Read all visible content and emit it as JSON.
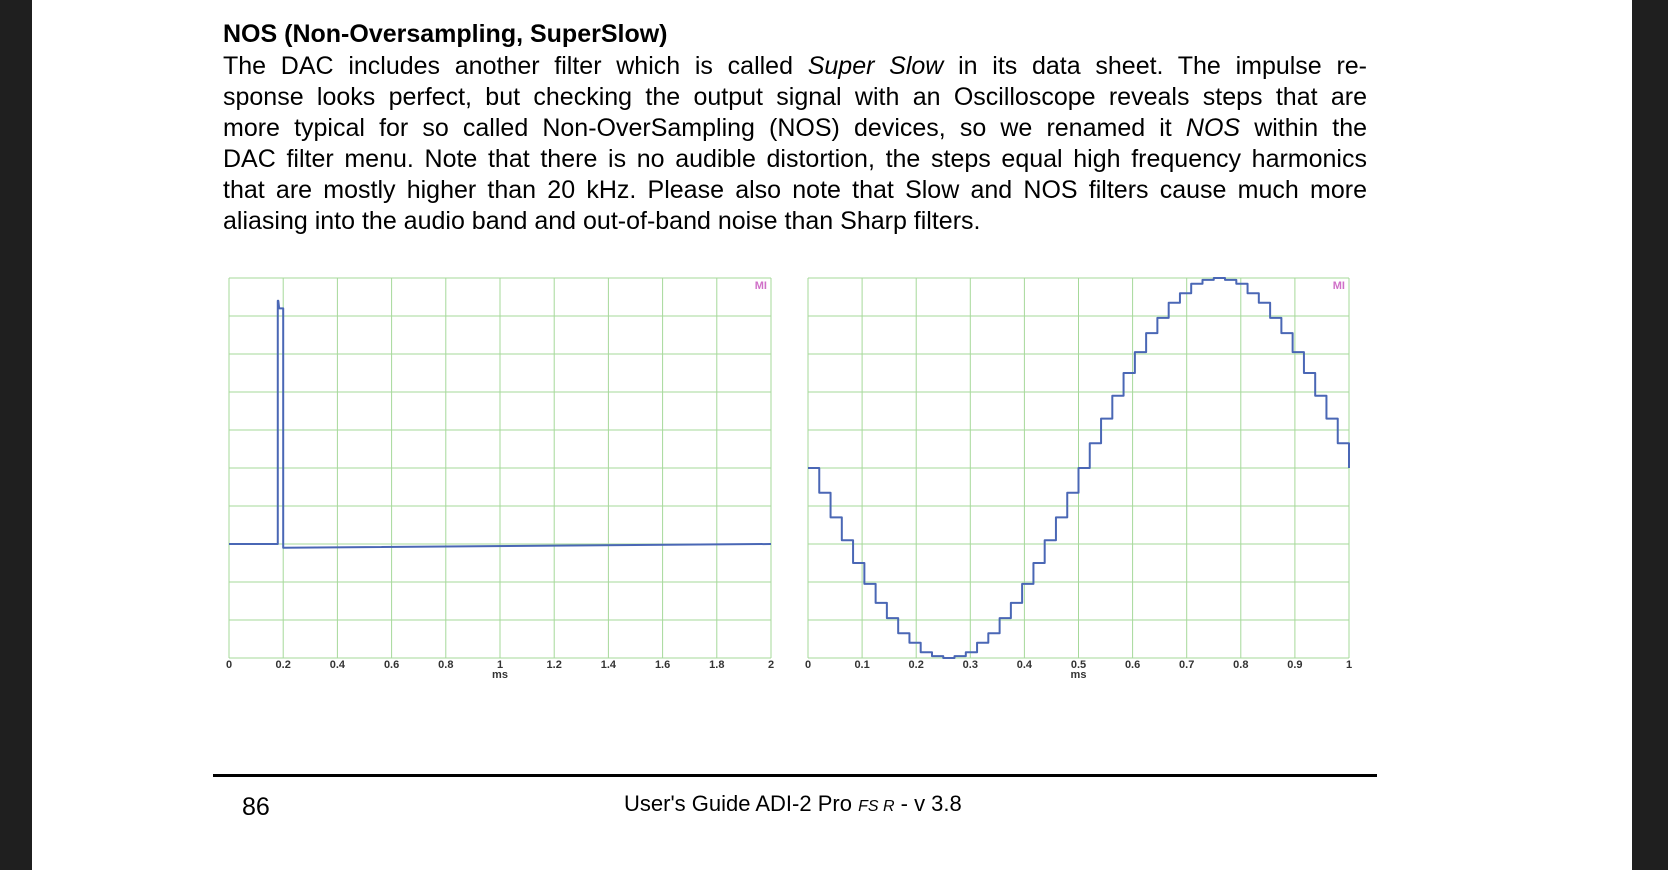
{
  "heading": "NOS (Non-Oversampling, SuperSlow)",
  "paragraph": [
    [
      {
        "t": "The DAC includes another filter which is called "
      },
      {
        "t": "Super Slow",
        "i": true
      },
      {
        "t": " in its data sheet. The impulse re-"
      }
    ],
    [
      {
        "t": "sponse looks perfect, but checking the output signal with an Oscilloscope reveals steps that are"
      }
    ],
    [
      {
        "t": "more typical for so called Non-OverSampling (NOS) devices, so we renamed it "
      },
      {
        "t": "NOS",
        "i": true
      },
      {
        "t": " within the"
      }
    ],
    [
      {
        "t": "DAC filter menu. Note that there is no audible distortion, the steps equal high frequency harmonics"
      }
    ],
    [
      {
        "t": "that are mostly higher than 20 kHz. Please also note that Slow and NOS filters cause much more"
      }
    ],
    [
      {
        "t": "aliasing into the audio band and out-of-band noise than Sharp filters."
      }
    ]
  ],
  "colors": {
    "grid": "#a6d99a",
    "trace": "#4a67b5",
    "mark": "#d070c8"
  },
  "chart_data": [
    {
      "type": "line",
      "xlabel": "ms",
      "xlim": [
        0,
        2
      ],
      "ylim": [
        -1,
        1
      ],
      "x_ticks": [
        "0",
        "0.2",
        "0.4",
        "0.6",
        "0.8",
        "1",
        "1.2",
        "1.4",
        "1.6",
        "1.8",
        "2"
      ],
      "corner_mark": "MI",
      "series": [
        {
          "x": [
            0,
            0.18,
            0.18,
            0.182,
            0.185,
            0.2,
            0.2,
            2
          ],
          "y": [
            -0.4,
            -0.4,
            0.88,
            0.88,
            0.84,
            0.84,
            -0.42,
            -0.4
          ]
        }
      ]
    },
    {
      "type": "line",
      "xlabel": "ms",
      "xlim": [
        0,
        1
      ],
      "ylim": [
        -1,
        1
      ],
      "x_ticks": [
        "0",
        "0.1",
        "0.2",
        "0.3",
        "0.4",
        "0.5",
        "0.6",
        "0.7",
        "0.8",
        "0.9",
        "1"
      ],
      "corner_mark": "MI",
      "series": [
        {
          "step": true,
          "x": [
            0,
            0.0208,
            0.0417,
            0.0625,
            0.0833,
            0.1042,
            0.125,
            0.1458,
            0.1667,
            0.1875,
            0.2083,
            0.2292,
            0.25,
            0.2708,
            0.2917,
            0.3125,
            0.3333,
            0.3542,
            0.375,
            0.3958,
            0.4167,
            0.4375,
            0.4583,
            0.4792,
            0.5,
            0.5208,
            0.5417,
            0.5625,
            0.5833,
            0.6042,
            0.625,
            0.6458,
            0.6667,
            0.6875,
            0.7083,
            0.7292,
            0.75,
            0.7708,
            0.7917,
            0.8125,
            0.8333,
            0.8542,
            0.875,
            0.8958,
            0.9167,
            0.9375,
            0.9583,
            0.9792,
            1.0
          ],
          "y": [
            0,
            -0.13,
            -0.26,
            -0.38,
            -0.5,
            -0.61,
            -0.71,
            -0.79,
            -0.87,
            -0.92,
            -0.97,
            -0.99,
            -1,
            -0.99,
            -0.97,
            -0.92,
            -0.87,
            -0.79,
            -0.71,
            -0.61,
            -0.5,
            -0.38,
            -0.26,
            -0.13,
            0,
            0.13,
            0.26,
            0.38,
            0.5,
            0.61,
            0.71,
            0.79,
            0.87,
            0.92,
            0.97,
            0.99,
            1,
            0.99,
            0.97,
            0.92,
            0.87,
            0.79,
            0.71,
            0.61,
            0.5,
            0.38,
            0.26,
            0.13,
            0
          ]
        }
      ]
    }
  ],
  "footer": {
    "page_number": "86",
    "title_main": "User's Guide ADI-2 Pro ",
    "title_small": "FS R",
    "title_suffix": " -  v 3.8"
  }
}
